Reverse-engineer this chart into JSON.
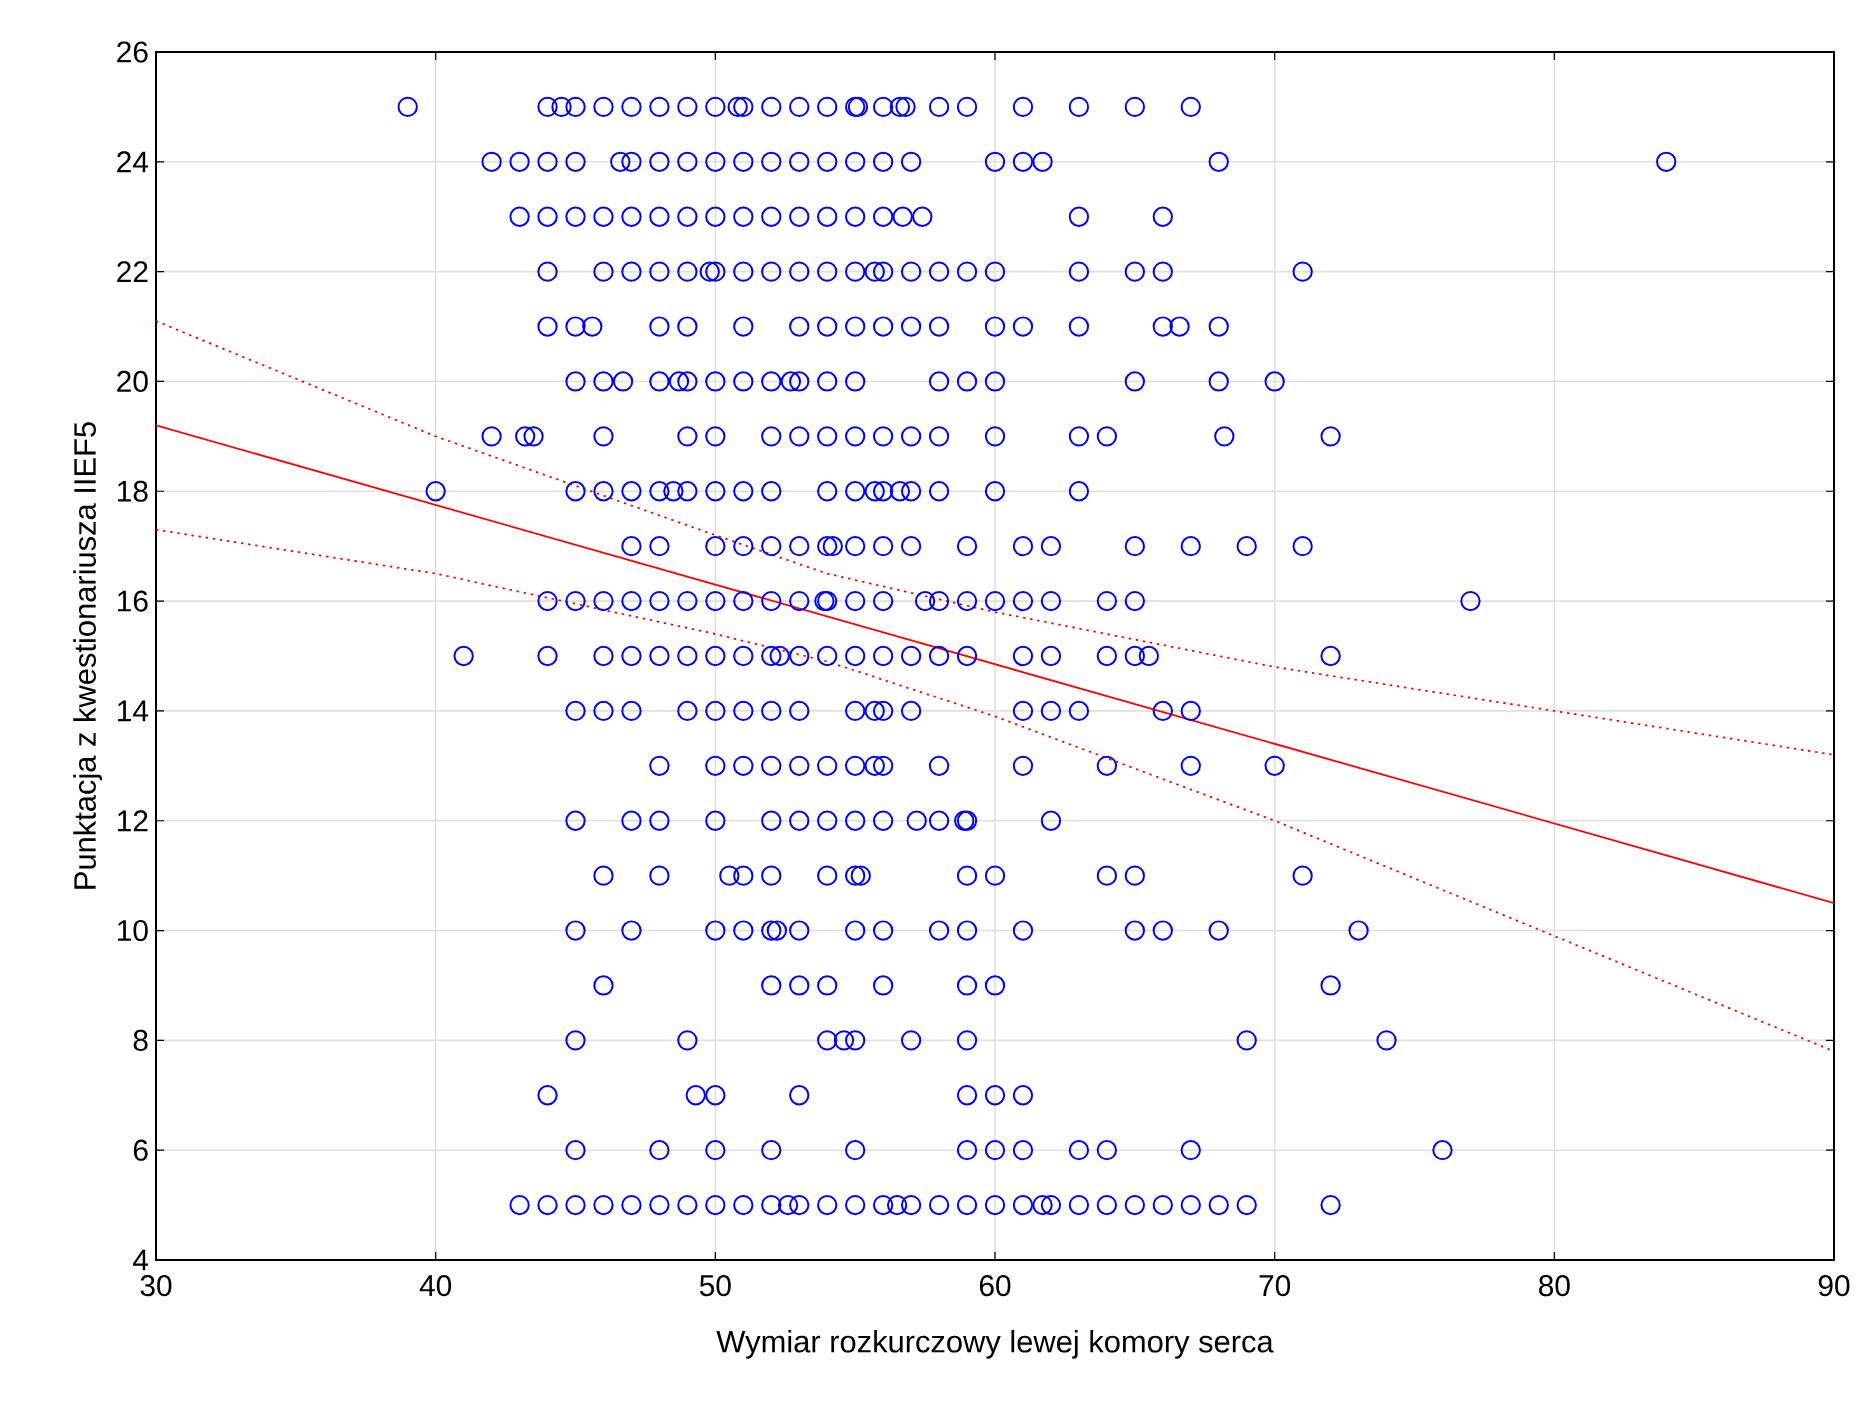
{
  "chart_data": {
    "type": "scatter",
    "xlabel": "Wymiar rozkurczowy lewej komory serca",
    "ylabel": "Punktacja z kwestionariusza IIEF5",
    "xlim": [
      30,
      90
    ],
    "ylim": [
      4,
      26
    ],
    "xticks": [
      30,
      40,
      50,
      60,
      70,
      80,
      90
    ],
    "yticks": [
      4,
      6,
      8,
      10,
      12,
      14,
      16,
      18,
      20,
      22,
      24,
      26
    ],
    "grid": true,
    "series": [
      {
        "color": "#0000ff",
        "marker": "circle",
        "x": [
          39,
          44,
          44.5,
          45,
          46,
          47,
          48,
          49,
          50,
          50.8,
          51,
          52,
          53,
          54,
          55,
          55.1,
          56,
          56.6,
          56.8,
          58,
          59,
          61,
          63,
          65,
          67,
          42,
          43,
          44,
          45,
          46.6,
          47,
          48,
          49,
          50,
          51,
          52,
          53,
          54,
          55,
          56,
          57,
          60,
          61,
          61.7,
          68,
          84,
          43,
          44,
          45,
          46,
          47,
          48,
          49,
          50,
          51,
          52,
          53,
          54,
          55,
          56,
          56.7,
          57.4,
          63,
          66,
          44,
          46,
          47,
          48,
          49,
          49.8,
          50,
          51,
          52,
          53,
          54,
          55,
          55.7,
          56,
          57,
          58,
          59,
          60,
          63,
          65,
          66,
          71,
          44,
          45,
          45.6,
          48,
          49,
          51,
          53,
          54,
          55,
          56,
          57,
          58,
          60,
          61,
          63,
          66,
          66.6,
          68,
          45,
          46,
          46.7,
          48,
          48.7,
          49,
          50,
          51,
          52,
          52.7,
          53,
          54,
          55,
          58,
          59,
          60,
          65,
          68,
          70,
          42,
          43.2,
          43.5,
          46,
          49,
          50,
          52,
          53,
          54,
          55,
          56,
          57,
          58,
          60,
          63,
          64,
          68.2,
          72,
          40,
          45,
          46,
          47,
          48,
          48.5,
          49,
          50,
          51,
          52,
          54,
          55,
          55.7,
          56,
          56.6,
          57,
          58,
          60,
          63,
          47,
          48,
          50,
          51,
          52,
          53,
          54,
          54.2,
          55,
          56,
          57,
          59,
          61,
          62,
          65,
          67,
          69,
          71,
          44,
          45,
          46,
          47,
          48,
          49,
          50,
          51,
          52,
          53,
          53.9,
          54,
          55,
          56,
          57.5,
          58,
          59,
          60,
          61,
          62,
          64,
          65,
          77,
          41,
          44,
          46,
          47,
          48,
          49,
          50,
          51,
          52,
          52.3,
          53,
          54,
          55,
          56,
          57,
          58,
          59,
          61,
          62,
          64,
          65,
          65.5,
          72,
          45,
          46,
          47,
          49,
          50,
          51,
          52,
          53,
          55,
          55.7,
          56,
          57,
          61,
          62,
          63,
          66,
          67,
          48,
          50,
          51,
          52,
          53,
          54,
          55,
          55.7,
          56,
          58,
          61,
          64,
          67,
          70,
          45,
          47,
          48,
          50,
          52,
          53,
          54,
          55,
          56,
          57.2,
          58,
          58.9,
          59,
          62,
          46,
          48,
          50.5,
          51,
          52,
          54,
          55,
          55.2,
          59,
          60,
          64,
          65,
          71,
          45,
          47,
          50,
          51,
          52,
          52.2,
          53,
          55,
          56,
          58,
          59,
          61,
          65,
          66,
          68,
          73,
          46,
          52,
          53,
          54,
          56,
          59,
          60,
          72,
          45,
          49,
          54,
          54.6,
          55,
          57,
          59,
          69,
          74,
          44,
          49.3,
          50,
          53,
          59,
          60,
          61,
          45,
          48,
          50,
          52,
          55,
          59,
          60,
          61,
          63,
          64,
          67,
          76,
          43,
          44,
          45,
          46,
          47,
          48,
          49,
          50,
          51,
          52,
          52.6,
          53,
          54,
          55,
          56,
          56.5,
          57,
          58,
          59,
          60,
          61,
          61.7,
          62,
          63,
          64,
          65,
          66,
          67,
          68,
          69,
          72
        ],
        "values": [
          25,
          25,
          25,
          25,
          25,
          25,
          25,
          25,
          25,
          25,
          25,
          25,
          25,
          25,
          25,
          25,
          25,
          25,
          25,
          25,
          25,
          25,
          25,
          25,
          25,
          24,
          24,
          24,
          24,
          24,
          24,
          24,
          24,
          24,
          24,
          24,
          24,
          24,
          24,
          24,
          24,
          24,
          24,
          24,
          24,
          24,
          23,
          23,
          23,
          23,
          23,
          23,
          23,
          23,
          23,
          23,
          23,
          23,
          23,
          23,
          23,
          23,
          23,
          23,
          22,
          22,
          22,
          22,
          22,
          22,
          22,
          22,
          22,
          22,
          22,
          22,
          22,
          22,
          22,
          22,
          22,
          22,
          22,
          22,
          22,
          22,
          21,
          21,
          21,
          21,
          21,
          21,
          21,
          21,
          21,
          21,
          21,
          21,
          21,
          21,
          21,
          21,
          21,
          21,
          20,
          20,
          20,
          20,
          20,
          20,
          20,
          20,
          20,
          20,
          20,
          20,
          20,
          20,
          20,
          20,
          20,
          20,
          20,
          19,
          19,
          19,
          19,
          19,
          19,
          19,
          19,
          19,
          19,
          19,
          19,
          19,
          19,
          19,
          19,
          19,
          19,
          18,
          18,
          18,
          18,
          18,
          18,
          18,
          18,
          18,
          18,
          18,
          18,
          18,
          18,
          18,
          18,
          18,
          18,
          18,
          17,
          17,
          17,
          17,
          17,
          17,
          17,
          17,
          17,
          17,
          17,
          17,
          17,
          17,
          17,
          17,
          17,
          17,
          16,
          16,
          16,
          16,
          16,
          16,
          16,
          16,
          16,
          16,
          16,
          16,
          16,
          16,
          16,
          16,
          16,
          16,
          16,
          16,
          16,
          16,
          16,
          15,
          15,
          15,
          15,
          15,
          15,
          15,
          15,
          15,
          15,
          15,
          15,
          15,
          15,
          15,
          15,
          15,
          15,
          15,
          15,
          15,
          15,
          15,
          14,
          14,
          14,
          14,
          14,
          14,
          14,
          14,
          14,
          14,
          14,
          14,
          14,
          14,
          14,
          14,
          14,
          13,
          13,
          13,
          13,
          13,
          13,
          13,
          13,
          13,
          13,
          13,
          13,
          13,
          13,
          12,
          12,
          12,
          12,
          12,
          12,
          12,
          12,
          12,
          12,
          12,
          12,
          12,
          12,
          11,
          11,
          11,
          11,
          11,
          11,
          11,
          11,
          11,
          11,
          11,
          11,
          11,
          10,
          10,
          10,
          10,
          10,
          10,
          10,
          10,
          10,
          10,
          10,
          10,
          10,
          10,
          10,
          10,
          9,
          9,
          9,
          9,
          9,
          9,
          9,
          9,
          8,
          8,
          8,
          8,
          8,
          8,
          8,
          8,
          8,
          7,
          7,
          7,
          7,
          7,
          7,
          7,
          6,
          6,
          6,
          6,
          6,
          6,
          6,
          6,
          6,
          6,
          6,
          6,
          5,
          5,
          5,
          5,
          5,
          5,
          5,
          5,
          5,
          5,
          5,
          5,
          5,
          5,
          5,
          5,
          5,
          5,
          5,
          5,
          5,
          5,
          5,
          5,
          5,
          5,
          5,
          5,
          5,
          5,
          5
        ]
      },
      {
        "type": "line",
        "color": "#ff0000",
        "marker": "none",
        "line_style": "solid",
        "x": [
          30,
          90
        ],
        "values": [
          19.2,
          10.5
        ]
      },
      {
        "type": "line",
        "color": "#ff0000",
        "marker": "none",
        "line_style": "dotted",
        "x": [
          30,
          40,
          50,
          54,
          60,
          70,
          80,
          90
        ],
        "values": [
          21.1,
          19.0,
          17.2,
          16.5,
          15.8,
          14.8,
          14.0,
          13.2
        ]
      },
      {
        "type": "line",
        "color": "#ff0000",
        "marker": "none",
        "line_style": "dotted",
        "x": [
          30,
          40,
          50,
          54,
          60,
          70,
          80,
          90
        ],
        "values": [
          17.3,
          16.5,
          15.4,
          14.9,
          13.9,
          12.0,
          9.9,
          7.8
        ]
      }
    ]
  }
}
